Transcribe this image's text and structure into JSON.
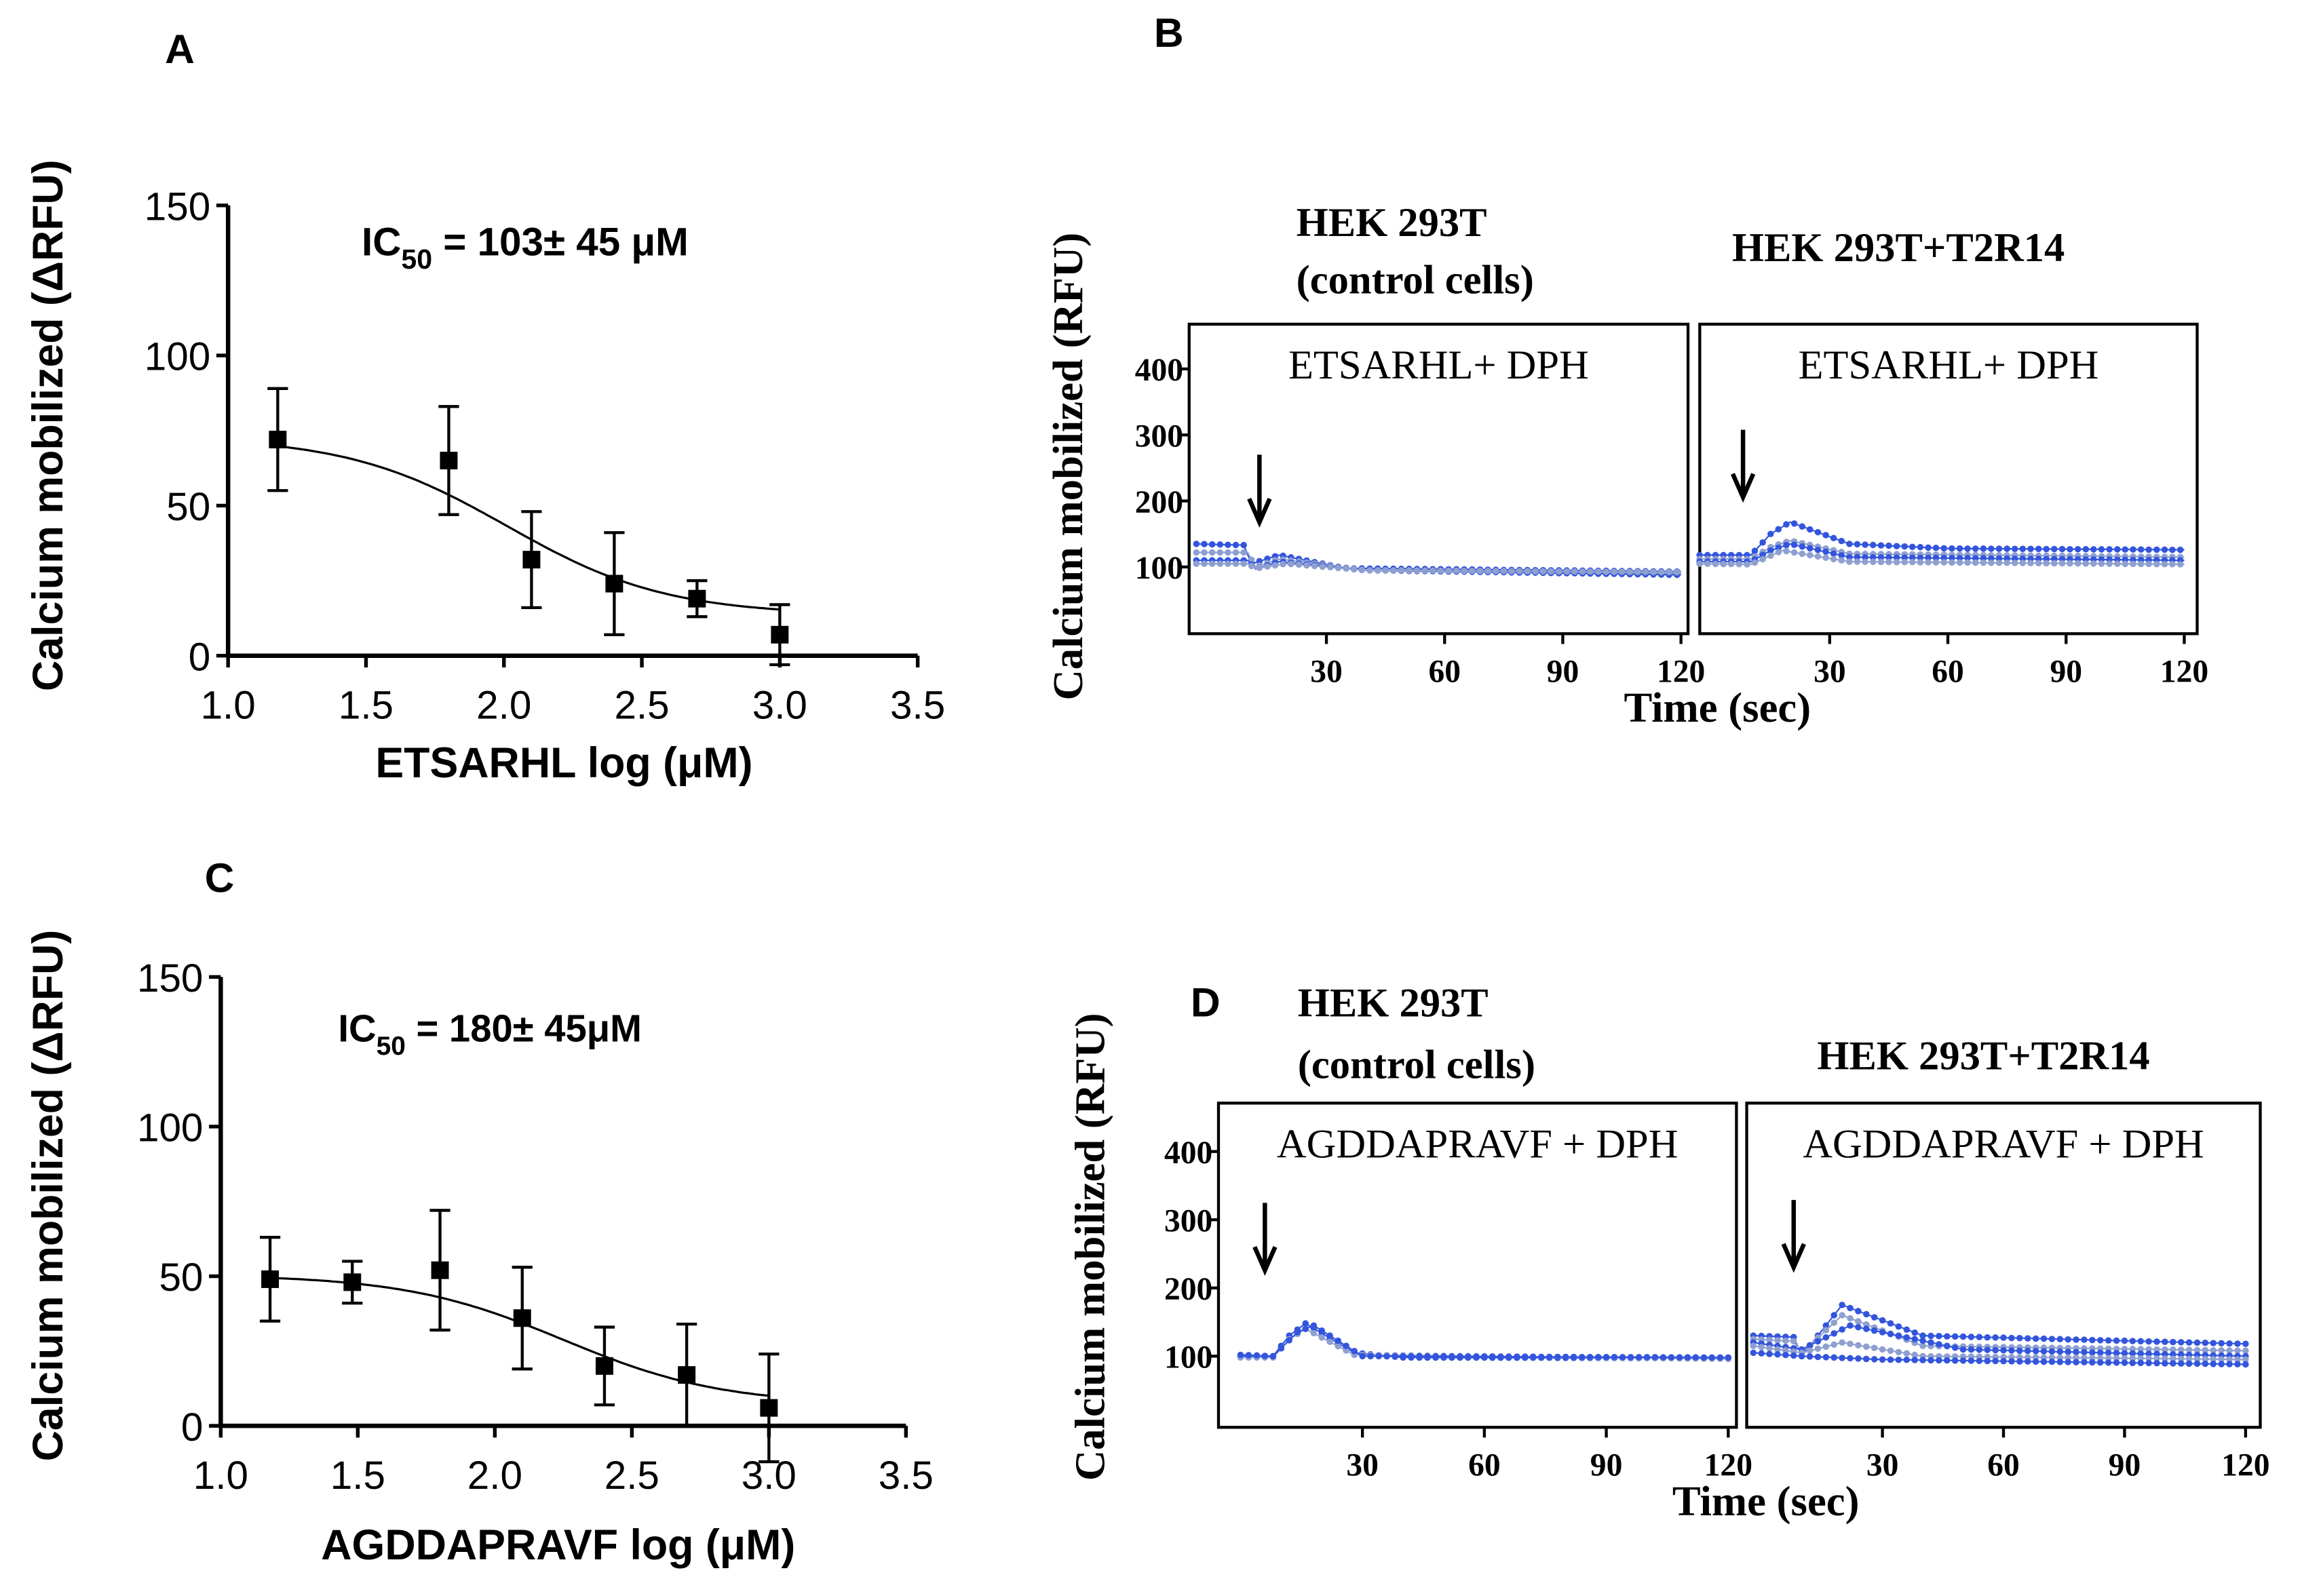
{
  "panel_labels": {
    "a": "A",
    "b": "B",
    "c": "C",
    "d": "D"
  },
  "colors": {
    "trace": "#3355dd",
    "trace_light": "#8fa0d0",
    "axis": "#000000"
  },
  "chart_data": [
    {
      "id": "A",
      "type": "scatter",
      "xlabel": "ETSARHL log (μM)",
      "ylabel": "Calcium mobilized (ΔRFU)",
      "xlim": [
        1.0,
        3.5
      ],
      "ylim": [
        0,
        150
      ],
      "xticks": [
        "1.0",
        "1.5",
        "2.0",
        "2.5",
        "3.0",
        "3.5"
      ],
      "yticks": [
        "0",
        "50",
        "100",
        "150"
      ],
      "annotation": {
        "ic": "IC",
        "sub": "50",
        "rest": " =  103± 45 μM"
      },
      "points": [
        {
          "x": 1.18,
          "y": 72,
          "err": 17
        },
        {
          "x": 1.8,
          "y": 65,
          "err": 18
        },
        {
          "x": 2.1,
          "y": 32,
          "err": 16
        },
        {
          "x": 2.4,
          "y": 24,
          "err": 17
        },
        {
          "x": 2.7,
          "y": 19,
          "err": 6
        },
        {
          "x": 3.0,
          "y": 7,
          "err": 10
        }
      ],
      "fit": {
        "top": 73,
        "bottom": 13.5,
        "logIC50": 2.01,
        "hill": 1.5
      }
    },
    {
      "id": "B",
      "type": "line",
      "ylabel": "Calcium mobilized (RFU)",
      "xlabel": "Time (sec)",
      "ylim": [
        0,
        470
      ],
      "yticks": [
        "100",
        "200",
        "300",
        "400"
      ],
      "xticks": [
        "30",
        "60",
        "90",
        "120"
      ],
      "panels": [
        {
          "title1": "HEK 293T",
          "title2": "(control cells)",
          "inbox": "ETSARHL+ DPH",
          "arrow_t": 13,
          "traces": [
            [
              [
                -3,
                135
              ],
              [
                9,
                133
              ],
              [
                11,
                105
              ],
              [
                18,
                118
              ],
              [
                35,
                98
              ],
              [
                120,
                93
              ]
            ],
            [
              [
                -3,
                122
              ],
              [
                10,
                122
              ],
              [
                12,
                100
              ],
              [
                18,
                112
              ],
              [
                40,
                95
              ],
              [
                120,
                90
              ]
            ],
            [
              [
                -3,
                110
              ],
              [
                10,
                110
              ],
              [
                12,
                97
              ],
              [
                18,
                108
              ],
              [
                40,
                95
              ],
              [
                120,
                88
              ]
            ],
            [
              [
                -3,
                105
              ],
              [
                10,
                105
              ],
              [
                12,
                98
              ],
              [
                20,
                105
              ],
              [
                40,
                95
              ],
              [
                120,
                92
              ]
            ]
          ]
        },
        {
          "title1": "HEK 293T+T2R14",
          "title2": "",
          "inbox": "ETSARHL+ DPH",
          "arrow_t": 8,
          "traces": [
            [
              [
                -3,
                118
              ],
              [
                10,
                118
              ],
              [
                15,
                150
              ],
              [
                20,
                168
              ],
              [
                35,
                135
              ],
              [
                60,
                128
              ],
              [
                120,
                126
              ]
            ],
            [
              [
                -3,
                112
              ],
              [
                10,
                112
              ],
              [
                15,
                130
              ],
              [
                20,
                140
              ],
              [
                35,
                120
              ],
              [
                120,
                115
              ]
            ],
            [
              [
                -3,
                108
              ],
              [
                10,
                108
              ],
              [
                15,
                125
              ],
              [
                20,
                135
              ],
              [
                35,
                115
              ],
              [
                120,
                110
              ]
            ],
            [
              [
                -3,
                105
              ],
              [
                10,
                104
              ],
              [
                18,
                125
              ],
              [
                35,
                108
              ],
              [
                120,
                104
              ]
            ]
          ]
        }
      ]
    },
    {
      "id": "C",
      "type": "scatter",
      "xlabel": "AGDDAPRAVF  log (μM)",
      "ylabel": "Calcium mobilized (ΔRFU)",
      "xlim": [
        1.0,
        3.5
      ],
      "ylim": [
        0,
        150
      ],
      "xticks": [
        "1.0",
        "1.5",
        "2.0",
        "2.5",
        "3.0",
        "3.5"
      ],
      "yticks": [
        "0",
        "50",
        "100",
        "150"
      ],
      "annotation": {
        "ic": "IC",
        "sub": "50",
        "rest": " =  180± 45μM"
      },
      "points": [
        {
          "x": 1.18,
          "y": 49,
          "err": 14
        },
        {
          "x": 1.48,
          "y": 48,
          "err": 7
        },
        {
          "x": 1.8,
          "y": 52,
          "err": 20
        },
        {
          "x": 2.1,
          "y": 36,
          "err": 17
        },
        {
          "x": 2.4,
          "y": 20,
          "err": 13
        },
        {
          "x": 2.7,
          "y": 17,
          "err": 17
        },
        {
          "x": 3.0,
          "y": 6,
          "err": 18
        }
      ],
      "fit": {
        "top": 50.5,
        "bottom": 7,
        "logIC50": 2.25,
        "hill": 1.5
      }
    },
    {
      "id": "D",
      "type": "line",
      "ylabel": "Calcium mobilized (RFU)",
      "xlabel": "Time (sec)",
      "ylim": [
        0,
        470
      ],
      "yticks": [
        "100",
        "200",
        "300",
        "400"
      ],
      "xticks": [
        "30",
        "60",
        "90",
        "120"
      ],
      "panels": [
        {
          "title1": "HEK 293T",
          "title2": "(control cells)",
          "inbox": "AGDDAPRAVF + DPH",
          "arrow_t": 6,
          "traces": [
            [
              [
                0,
                100
              ],
              [
                8,
                100
              ],
              [
                12,
                130
              ],
              [
                16,
                148
              ],
              [
                28,
                105
              ],
              [
                40,
                98
              ],
              [
                120,
                97
              ]
            ],
            [
              [
                0,
                98
              ],
              [
                8,
                98
              ],
              [
                12,
                125
              ],
              [
                16,
                140
              ],
              [
                28,
                102
              ],
              [
                120,
                96
              ]
            ],
            [
              [
                0,
                102
              ],
              [
                8,
                100
              ],
              [
                14,
                135
              ],
              [
                18,
                145
              ],
              [
                30,
                100
              ],
              [
                120,
                98
              ]
            ]
          ]
        },
        {
          "title1": "HEK 293T+T2R14",
          "title2": "",
          "inbox": "AGDDAPRAVF + DPH",
          "arrow_t": 8,
          "traces": [
            [
              [
                -2,
                130
              ],
              [
                8,
                128
              ],
              [
                10,
                100
              ],
              [
                20,
                175
              ],
              [
                40,
                130
              ],
              [
                120,
                118
              ]
            ],
            [
              [
                -2,
                125
              ],
              [
                8,
                122
              ],
              [
                10,
                105
              ],
              [
                20,
                160
              ],
              [
                40,
                115
              ],
              [
                120,
                108
              ]
            ],
            [
              [
                -2,
                120
              ],
              [
                10,
                110
              ],
              [
                22,
                145
              ],
              [
                50,
                110
              ],
              [
                120,
                100
              ]
            ],
            [
              [
                -2,
                115
              ],
              [
                10,
                105
              ],
              [
                20,
                120
              ],
              [
                40,
                100
              ],
              [
                120,
                95
              ]
            ],
            [
              [
                -2,
                105
              ],
              [
                10,
                100
              ],
              [
                30,
                95
              ],
              [
                120,
                88
              ]
            ]
          ]
        }
      ]
    }
  ]
}
